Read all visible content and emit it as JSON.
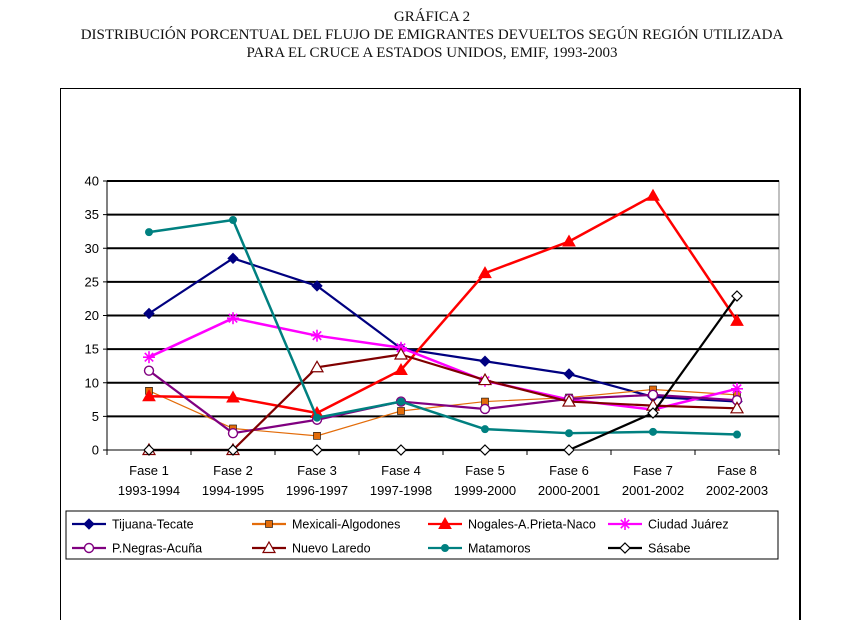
{
  "title": {
    "line1": "GRÁFICA 2",
    "line2": "DISTRIBUCIÓN PORCENTUAL DEL FLUJO DE EMIGRANTES DEVUELTOS SEGÚN REGIÓN UTILIZADA",
    "line3": "PARA EL CRUCE A ESTADOS UNIDOS, EMIF, 1993-2003"
  },
  "chart_data": {
    "type": "line",
    "title": "DISTRIBUCIÓN PORCENTUAL DEL FLUJO DE EMIGRANTES DEVUELTOS SEGÚN REGIÓN UTILIZADA PARA EL CRUCE A ESTADOS UNIDOS, EMIF, 1993-2003",
    "categories": [
      [
        "Fase 1",
        "1993-1994"
      ],
      [
        "Fase 2",
        "1994-1995"
      ],
      [
        "Fase 3",
        "1996-1997"
      ],
      [
        "Fase 4",
        "1997-1998"
      ],
      [
        "Fase 5",
        "1999-2000"
      ],
      [
        "Fase 6",
        "2000-2001"
      ],
      [
        "Fase 7",
        "2001-2002"
      ],
      [
        "Fase 8",
        "2002-2003"
      ]
    ],
    "ylim": [
      0,
      40
    ],
    "yticks": [
      0,
      5,
      10,
      15,
      20,
      25,
      30,
      35,
      40
    ],
    "grid": true,
    "legend_position": "bottom",
    "series": [
      {
        "name": "Tijuana-Tecate",
        "color": "#000080",
        "marker": "diamond",
        "values": [
          20.3,
          28.5,
          24.4,
          15.1,
          13.2,
          11.3,
          7.9,
          7.2
        ]
      },
      {
        "name": "Mexicali-Algodones",
        "color": "#e36c0a",
        "marker": "square",
        "values": [
          8.8,
          3.2,
          2.1,
          5.8,
          7.2,
          7.8,
          9.0,
          8.2
        ]
      },
      {
        "name": "Nogales-A.Prieta-Naco",
        "color": "#ff0000",
        "marker": "triangle",
        "values": [
          8.0,
          7.8,
          5.5,
          11.9,
          26.3,
          31.0,
          37.8,
          19.2
        ]
      },
      {
        "name": "Ciudad Juárez",
        "color": "#ff00ff",
        "marker": "asterisk",
        "values": [
          13.8,
          19.6,
          17.0,
          15.2,
          10.3,
          7.5,
          6.0,
          9.1
        ]
      },
      {
        "name": "P.Negras-Acuña",
        "color": "#800080",
        "marker": "circle",
        "values": [
          11.8,
          2.5,
          4.5,
          7.2,
          6.1,
          7.6,
          8.2,
          7.4
        ]
      },
      {
        "name": "Nuevo Laredo",
        "color": "#800000",
        "marker": "triangle-open",
        "values": [
          0,
          0,
          12.3,
          14.2,
          10.4,
          7.2,
          6.6,
          6.2
        ]
      },
      {
        "name": "Matamoros",
        "color": "#008080",
        "marker": "dot",
        "values": [
          32.4,
          34.2,
          4.8,
          7.2,
          3.1,
          2.5,
          2.7,
          2.3
        ]
      },
      {
        "name": "Sásabe",
        "color": "#000000",
        "marker": "diamond-open",
        "values": [
          0,
          0,
          0,
          0,
          0,
          0,
          5.5,
          22.9
        ]
      }
    ]
  }
}
